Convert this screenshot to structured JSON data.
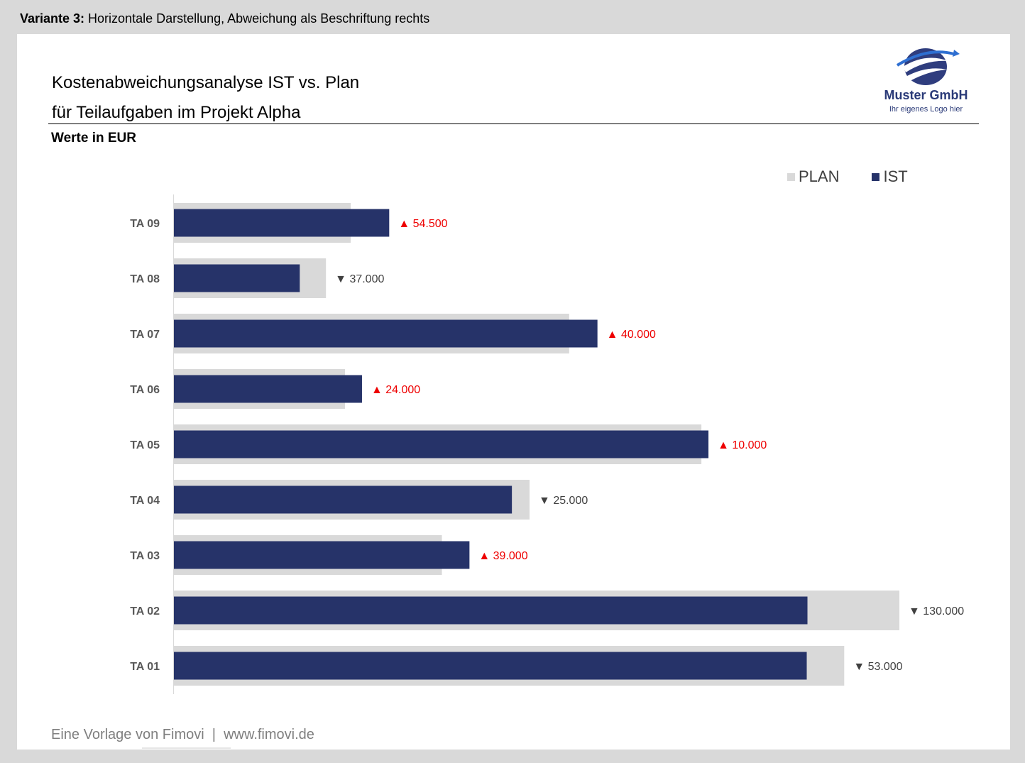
{
  "header": {
    "caption_bold": "Variante 3:",
    "caption_text": " Horizontale Darstellung, Abweichung als Beschriftung rechts"
  },
  "title_line1": "Kostenabweichungsanalyse IST vs. Plan",
  "title_line2": "für Teilaufgaben im Projekt Alpha",
  "subtitle": "Werte in EUR",
  "logo": {
    "name": "Muster GmbH",
    "tagline": "Ihr eigenes Logo hier",
    "icon": "globe-swoosh-icon"
  },
  "legend": {
    "plan_label": "PLAN",
    "ist_label": "IST"
  },
  "footer": "Eine Vorlage von Fimovi  |  www.fimovi.de",
  "colors": {
    "plan": "#d9d9d9",
    "ist": "#263369",
    "over": "#ee0000",
    "under": "#404040",
    "axis": "#d9d9d9",
    "category_text": "#595959"
  },
  "chart_data": {
    "type": "bar",
    "orientation": "horizontal",
    "categories": [
      "TA 09",
      "TA 08",
      "TA 07",
      "TA 06",
      "TA 05",
      "TA 04",
      "TA 03",
      "TA 02",
      "TA 01"
    ],
    "series": [
      {
        "name": "PLAN",
        "values": [
          250000,
          215000,
          559000,
          242000,
          746000,
          503000,
          379000,
          1026000,
          948000
        ]
      },
      {
        "name": "IST",
        "values": [
          304500,
          178000,
          599000,
          266000,
          756000,
          478000,
          418000,
          896000,
          895000
        ]
      }
    ],
    "deviation_labels": [
      "▲ 54.500",
      "▼ 37.000",
      "▲ 40.000",
      "▲ 24.000",
      "▲ 10.000",
      "▼ 25.000",
      "▲ 39.000",
      "▼ 130.000",
      "▼ 53.000"
    ],
    "deviation_direction": [
      "over",
      "under",
      "over",
      "over",
      "over",
      "under",
      "over",
      "under",
      "under"
    ],
    "xlim": [
      0,
      1030000
    ],
    "grid": false,
    "legend_position": "top-right"
  }
}
